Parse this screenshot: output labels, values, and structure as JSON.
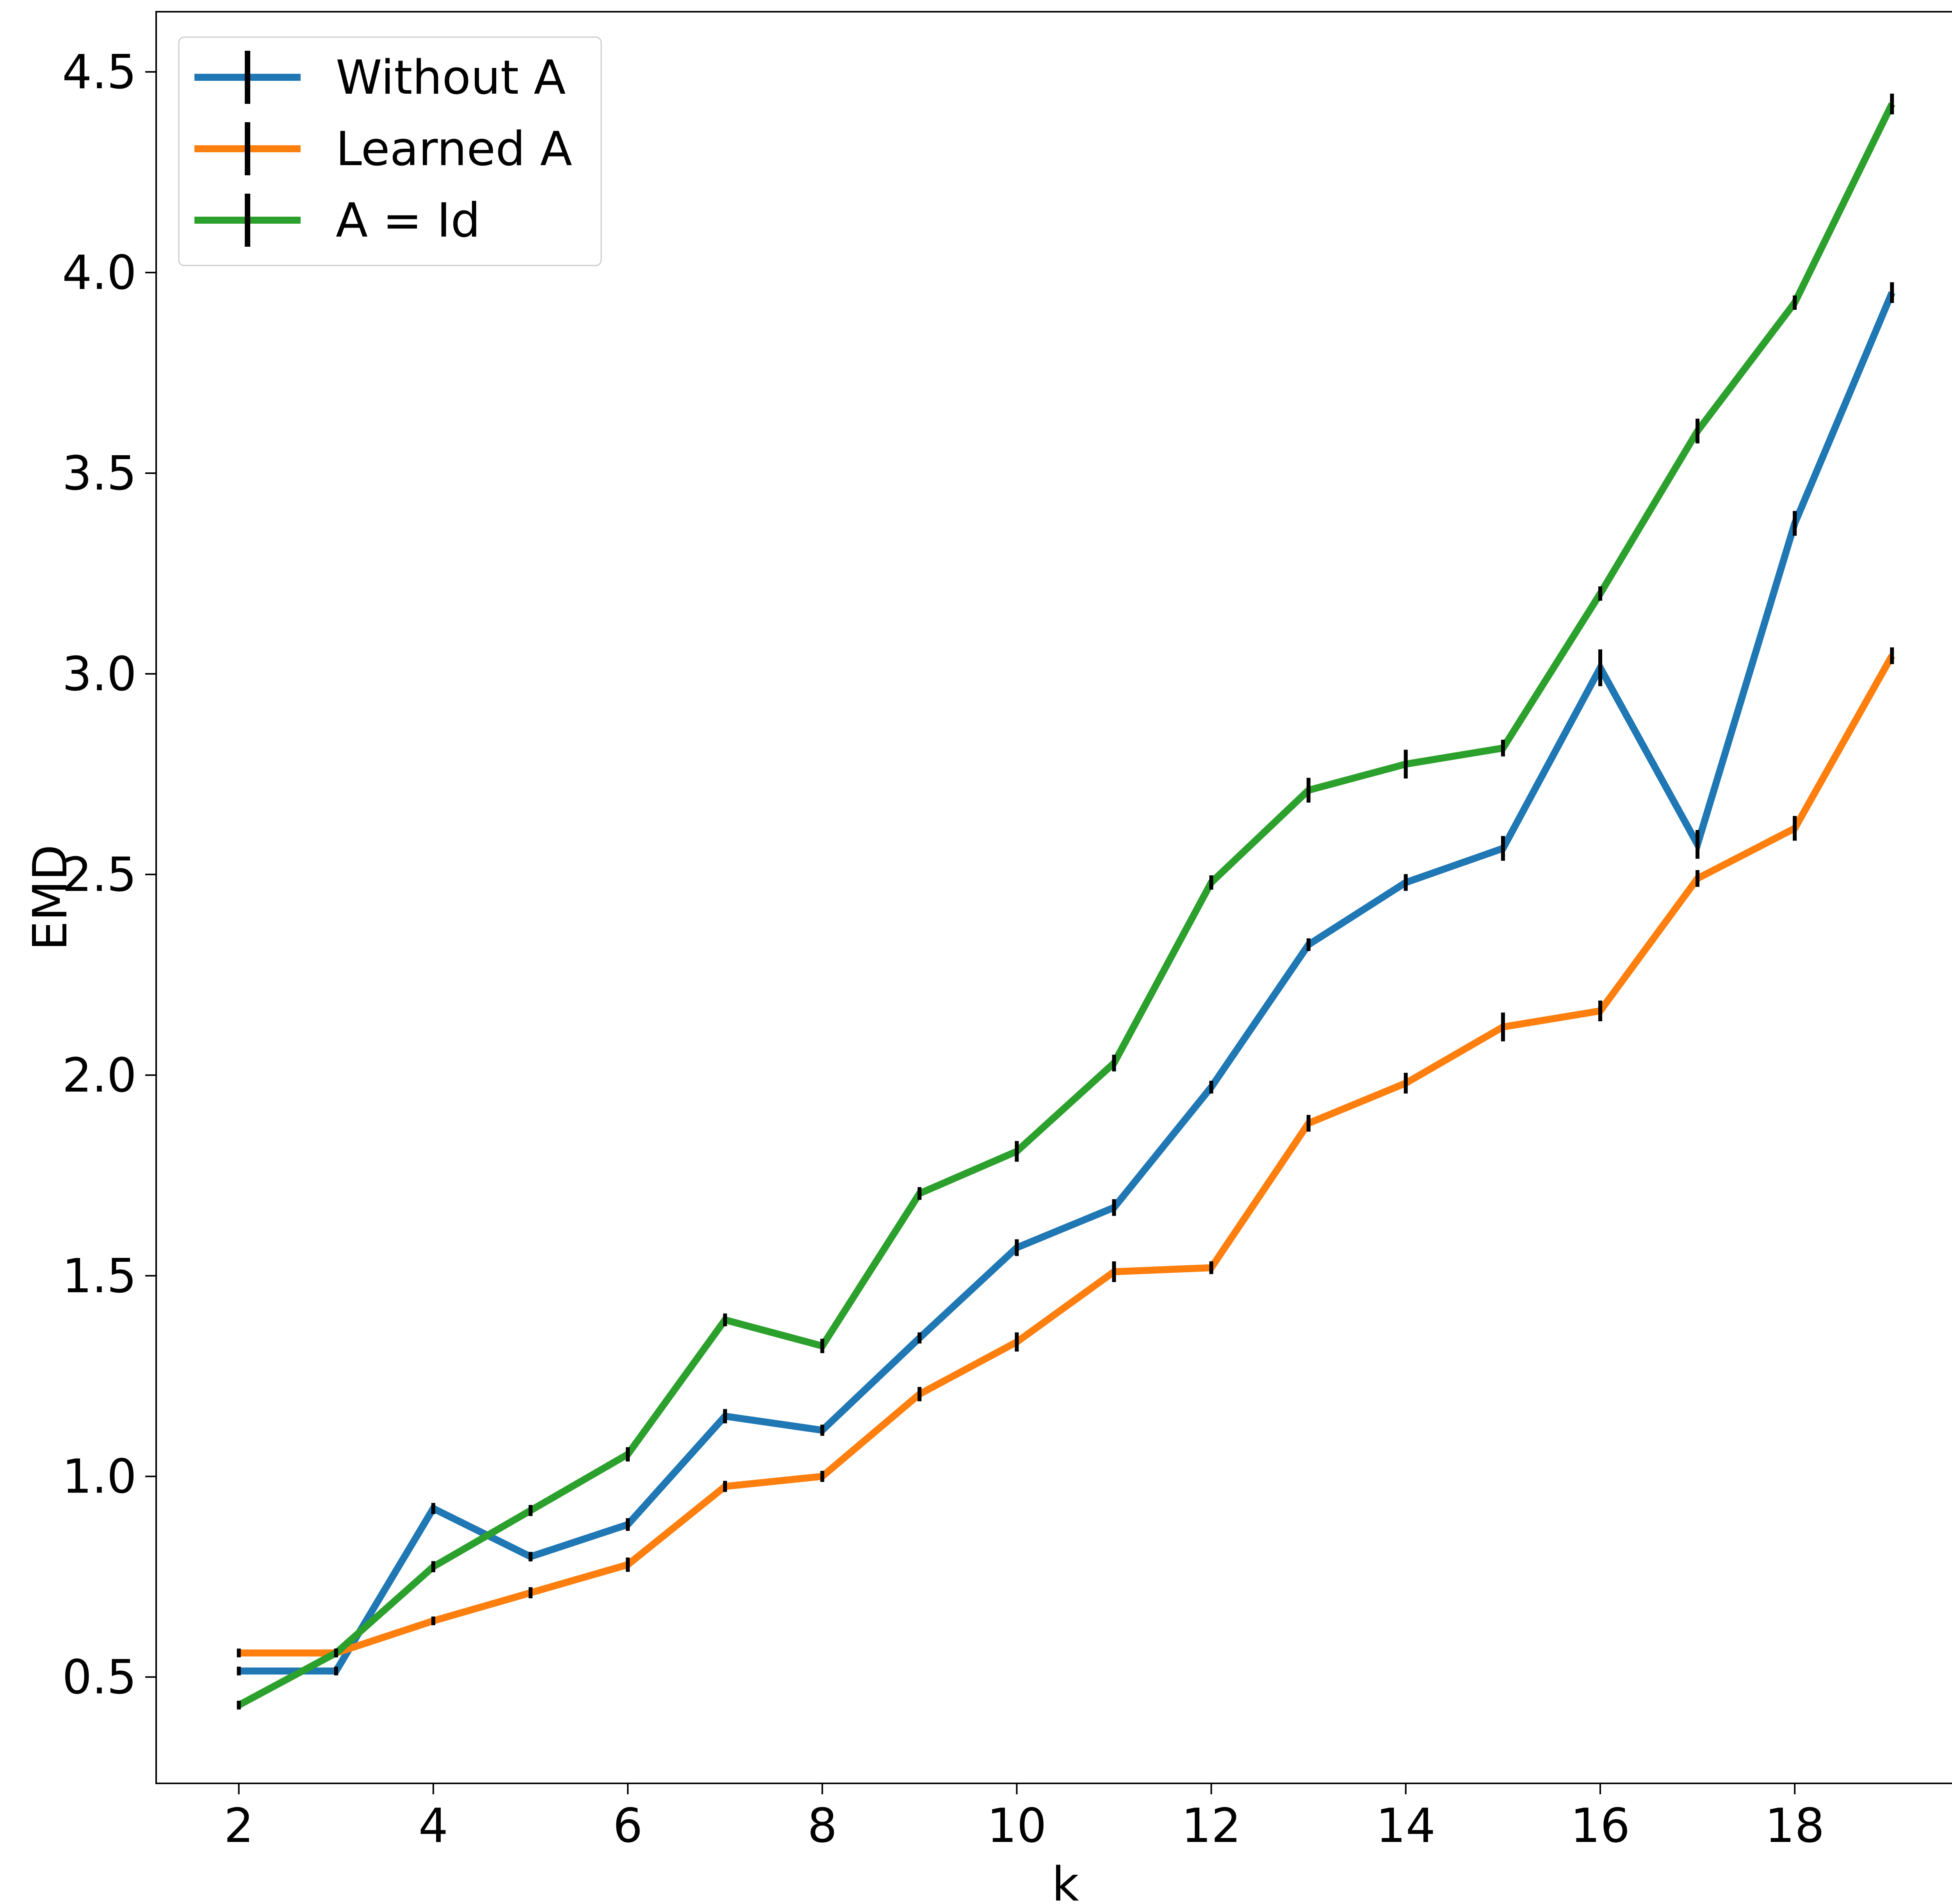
{
  "chart_data": {
    "type": "line",
    "title": "",
    "xlabel": "k",
    "ylabel": "EMD",
    "xlim": [
      1.15,
      19.85
    ],
    "ylim": [
      0.235,
      4.65
    ],
    "xticks": [
      2,
      4,
      6,
      8,
      10,
      12,
      14,
      16,
      18
    ],
    "yticks": [
      0.5,
      1.0,
      1.5,
      2.0,
      2.5,
      3.0,
      3.5,
      4.0,
      4.5
    ],
    "grid": false,
    "legend_position": "top-left",
    "errorbar_color": "#000000",
    "x": [
      2,
      3,
      4,
      5,
      6,
      7,
      8,
      9,
      10,
      11,
      12,
      13,
      14,
      15,
      16,
      17,
      18,
      19
    ],
    "series": [
      {
        "name": "Without A",
        "color": "#1f77b4",
        "values": [
          0.515,
          0.515,
          0.92,
          0.8,
          0.88,
          1.15,
          1.115,
          1.345,
          1.57,
          1.67,
          1.97,
          2.325,
          2.48,
          2.565,
          3.015,
          2.575,
          3.375,
          3.95
        ],
        "errors": [
          0.005,
          0.005,
          0.008,
          0.006,
          0.01,
          0.012,
          0.008,
          0.008,
          0.015,
          0.015,
          0.01,
          0.01,
          0.015,
          0.025,
          0.04,
          0.03,
          0.025,
          0.02
        ]
      },
      {
        "name": "Learned A",
        "color": "#ff7f0e",
        "values": [
          0.56,
          0.56,
          0.64,
          0.71,
          0.78,
          0.975,
          1.0,
          1.205,
          1.335,
          1.51,
          1.52,
          1.88,
          1.98,
          2.12,
          2.16,
          2.49,
          2.615,
          3.045
        ],
        "errors": [
          0.005,
          0.005,
          0.005,
          0.008,
          0.012,
          0.008,
          0.008,
          0.012,
          0.018,
          0.02,
          0.01,
          0.015,
          0.02,
          0.03,
          0.02,
          0.015,
          0.025,
          0.015
        ]
      },
      {
        "name": "A = Id",
        "color": "#2ca02c",
        "values": [
          0.43,
          0.56,
          0.775,
          0.915,
          1.055,
          1.39,
          1.325,
          1.705,
          1.81,
          2.03,
          2.48,
          2.71,
          2.775,
          2.815,
          3.2,
          3.605,
          3.925,
          4.42
        ],
        "errors": [
          0.005,
          0.005,
          0.008,
          0.008,
          0.012,
          0.01,
          0.012,
          0.01,
          0.02,
          0.015,
          0.012,
          0.025,
          0.03,
          0.015,
          0.012,
          0.025,
          0.012,
          0.02
        ]
      }
    ]
  }
}
